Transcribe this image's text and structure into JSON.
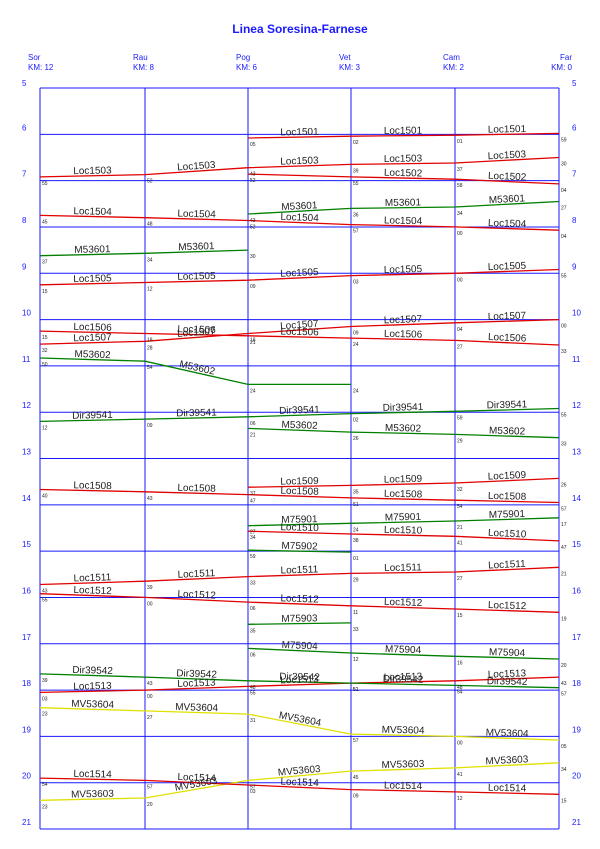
{
  "title": "Linea Soresina-Farnese",
  "chart_data": {
    "type": "line",
    "title": "Linea Soresina-Farnese",
    "stations": [
      {
        "name": "Sor",
        "km": "KM: 12"
      },
      {
        "name": "Rau",
        "km": "KM: 8"
      },
      {
        "name": "Pog",
        "km": "KM: 6"
      },
      {
        "name": "Vet",
        "km": "KM: 3"
      },
      {
        "name": "Cam",
        "km": "KM: 2"
      },
      {
        "name": "Far",
        "km": "KM: 0"
      }
    ],
    "hours": [
      "5",
      "6",
      "7",
      "8",
      "9",
      "10",
      "11",
      "12",
      "13",
      "14",
      "15",
      "16",
      "17",
      "18",
      "19",
      "20",
      "21"
    ],
    "ylim": [
      5,
      21
    ],
    "colors": {
      "Loc": "#e00000",
      "M": "#008000",
      "Dir": "#008000",
      "MV": "#e0e000",
      "grid": "#1a1aff"
    },
    "series": [
      {
        "name": "Loc1501",
        "color": "red",
        "times": [
          null,
          null,
          6.08,
          6.04,
          6.02,
          5.98
        ],
        "label_pos": [
          2,
          3,
          4
        ]
      },
      {
        "name": "Loc1503",
        "color": "red",
        "times": [
          6.92,
          6.87,
          6.72,
          6.65,
          6.62,
          6.5
        ],
        "label_pos": [
          0,
          1,
          2,
          3,
          4
        ]
      },
      {
        "name": "Loc1502",
        "color": "red",
        "times": [
          null,
          null,
          6.86,
          6.92,
          6.97,
          7.07
        ],
        "label_pos": [
          3,
          4
        ]
      },
      {
        "name": "Loc1504",
        "color": "red",
        "times": [
          7.75,
          7.8,
          7.86,
          7.95,
          8.0,
          8.07
        ],
        "label_pos": [
          0,
          1,
          2,
          3,
          4
        ]
      },
      {
        "name": "M53601",
        "color": "green",
        "times": [
          8.62,
          8.57,
          8.5,
          null,
          null,
          null
        ],
        "label_pos": [
          0,
          1
        ]
      },
      {
        "name": "M53601",
        "color": "green",
        "times": [
          null,
          null,
          7.72,
          7.6,
          7.57,
          7.45
        ],
        "label_pos": [
          2,
          3,
          4
        ]
      },
      {
        "name": "Loc1505",
        "color": "red",
        "times": [
          9.25,
          9.2,
          9.15,
          9.05,
          9.0,
          8.92
        ],
        "label_pos": [
          0,
          1,
          2,
          3,
          4
        ]
      },
      {
        "name": "Loc1506",
        "color": "red",
        "times": [
          10.25,
          10.3,
          10.35,
          10.4,
          10.45,
          10.55
        ],
        "label_pos": [
          0,
          1,
          2,
          3,
          4
        ]
      },
      {
        "name": "Loc1507",
        "color": "red",
        "times": [
          10.53,
          10.47,
          10.3,
          10.15,
          10.07,
          10.0
        ],
        "label_pos": [
          0,
          1,
          2,
          3,
          4
        ]
      },
      {
        "name": "M53602",
        "color": "green",
        "times": [
          10.83,
          10.9,
          11.4,
          11.4,
          null,
          null
        ],
        "label_pos": [
          0,
          1
        ]
      },
      {
        "name": "Dir39541",
        "color": "green",
        "times": [
          12.2,
          12.15,
          12.1,
          12.03,
          11.98,
          11.92
        ],
        "label_pos": [
          0,
          1,
          2,
          3,
          4
        ]
      },
      {
        "name": "M53602",
        "color": "green",
        "times": [
          null,
          null,
          12.35,
          12.43,
          12.48,
          12.55
        ],
        "label_pos": [
          2,
          3,
          4
        ]
      },
      {
        "name": "Loc1508",
        "color": "red",
        "times": [
          13.67,
          13.72,
          13.78,
          13.85,
          13.9,
          13.95
        ],
        "label_pos": [
          0,
          1,
          2,
          3,
          4
        ]
      },
      {
        "name": "Loc1509",
        "color": "red",
        "times": [
          null,
          null,
          13.62,
          13.58,
          13.53,
          13.43
        ],
        "label_pos": [
          2,
          3,
          4
        ]
      },
      {
        "name": "M75901",
        "color": "green",
        "times": [
          null,
          null,
          14.45,
          14.4,
          14.35,
          14.28
        ],
        "label_pos": [
          2,
          3,
          4
        ]
      },
      {
        "name": "Loc1510",
        "color": "red",
        "times": [
          null,
          null,
          14.57,
          14.63,
          14.68,
          14.78
        ],
        "label_pos": [
          2,
          3,
          4
        ]
      },
      {
        "name": "M75902",
        "color": "green",
        "times": [
          null,
          null,
          14.98,
          15.02,
          null,
          null
        ],
        "label_pos": [
          2
        ]
      },
      {
        "name": "Loc1511",
        "color": "red",
        "times": [
          15.72,
          15.65,
          15.55,
          15.48,
          15.45,
          15.35
        ],
        "label_pos": [
          0,
          1,
          2,
          3,
          4
        ]
      },
      {
        "name": "Loc1512",
        "color": "red",
        "times": [
          15.92,
          16.0,
          16.1,
          16.18,
          16.25,
          16.32
        ],
        "label_pos": [
          0,
          1,
          2,
          3,
          4
        ]
      },
      {
        "name": "M75903",
        "color": "green",
        "times": [
          null,
          null,
          16.58,
          16.55,
          null,
          null
        ],
        "label_pos": [
          2
        ]
      },
      {
        "name": "M75904",
        "color": "green",
        "times": [
          null,
          null,
          17.1,
          17.2,
          17.27,
          17.33
        ],
        "label_pos": [
          2,
          3,
          4
        ]
      },
      {
        "name": "Loc1513",
        "color": "red",
        "times": [
          18.05,
          18.0,
          17.92,
          17.85,
          17.8,
          17.72
        ],
        "label_pos": [
          0,
          1,
          2,
          3,
          4
        ]
      },
      {
        "name": "Dir39542",
        "color": "green",
        "times": [
          17.65,
          17.72,
          17.8,
          17.85,
          17.9,
          17.95
        ],
        "label_pos": [
          0,
          1,
          2,
          3,
          4
        ]
      },
      {
        "name": "MV53604",
        "color": "yellow",
        "times": [
          18.38,
          18.45,
          18.52,
          18.95,
          19.0,
          19.08
        ],
        "label_pos": [
          0,
          1,
          2,
          3,
          4
        ]
      },
      {
        "name": "MV53603",
        "color": "yellow",
        "times": [
          20.38,
          20.33,
          19.95,
          19.75,
          19.68,
          19.57
        ],
        "label_pos": [
          0,
          1,
          2,
          3,
          4
        ]
      },
      {
        "name": "Loc1514",
        "color": "red",
        "times": [
          19.9,
          19.95,
          20.05,
          20.15,
          20.2,
          20.25
        ],
        "label_pos": [
          0,
          1,
          2,
          3,
          4
        ]
      }
    ]
  }
}
